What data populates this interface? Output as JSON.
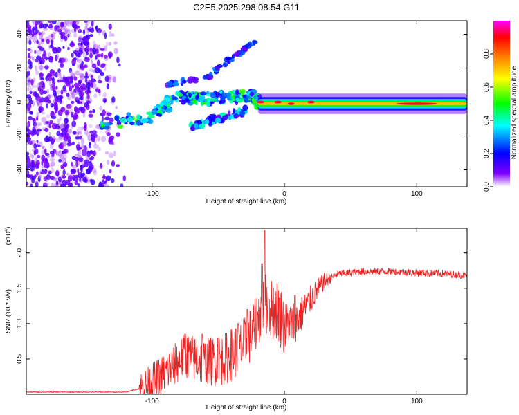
{
  "figure_title": "C2E5.2025.298.08.54.G11",
  "colors": {
    "snr_line": "#ee2222",
    "frame": "#000000"
  },
  "chart_data": [
    {
      "type": "heatmap",
      "title": "C2E5.2025.298.08.54.G11",
      "xlabel": "Height of straight line (km)",
      "ylabel": "Frequency (Hz)",
      "xlim": [
        -195,
        138
      ],
      "ylim": [
        -50,
        48
      ],
      "xticks": [
        -100,
        0,
        100
      ],
      "xtick_labels": [
        "-100",
        "0",
        "100"
      ],
      "yticks": [
        -40,
        -20,
        0,
        20,
        40
      ],
      "ytick_labels": [
        "-40",
        "-20",
        "0",
        "20",
        "40"
      ],
      "colorbar": {
        "label": "Normalized spectral amplitude",
        "range": [
          0,
          1
        ],
        "ticks": [
          0.0,
          0.2,
          0.4,
          0.6,
          0.8
        ],
        "tick_labels": [
          "0.0",
          "0.2",
          "0.4",
          "0.6",
          "0.8"
        ],
        "colormap": [
          "#ffffff",
          "#7f00ff",
          "#0000ff",
          "#00ffff",
          "#00ff00",
          "#ffff00",
          "#ff7f00",
          "#ff0000",
          "#ff00ff"
        ]
      },
      "features": [
        {
          "name": "noise",
          "x_range": [
            -195,
            -120
          ],
          "y_range": [
            -50,
            48
          ],
          "amplitude": 0.1
        },
        {
          "name": "rising_branch_main",
          "points": [
            [
              -140,
              -14
            ],
            [
              -100,
              -8
            ],
            [
              -80,
              3
            ],
            [
              -60,
              2
            ],
            [
              -40,
              3
            ],
            [
              -25,
              3
            ],
            [
              -20,
              0
            ]
          ],
          "amplitude": 0.45
        },
        {
          "name": "rising_branch_upper",
          "points": [
            [
              -90,
              10
            ],
            [
              -60,
              14
            ],
            [
              -40,
              26
            ],
            [
              -22,
              36
            ]
          ],
          "amplitude": 0.25
        },
        {
          "name": "rising_branch_lower",
          "points": [
            [
              -70,
              -14
            ],
            [
              -50,
              -10
            ],
            [
              -30,
              -5
            ]
          ],
          "amplitude": 0.35
        },
        {
          "name": "zero_frequency_band",
          "x_range": [
            -20,
            138
          ],
          "center": -1,
          "amplitude": 0.6
        },
        {
          "name": "peaks",
          "points": [
            [
              -18,
              0
            ],
            [
              -5,
              0
            ],
            [
              5,
              -1
            ],
            [
              20,
              0
            ],
            [
              100,
              -1
            ]
          ],
          "amplitude": 1.0
        }
      ]
    },
    {
      "type": "line",
      "xlabel": "Height of straight line (km)",
      "ylabel": "SNR (10 * v/v)",
      "yscale_label": "(x10",
      "yscale_exponent": "4",
      "xlim": [
        -195,
        138
      ],
      "ylim": [
        0,
        2.35
      ],
      "xticks": [
        -100,
        0,
        100
      ],
      "xtick_labels": [
        "-100",
        "0",
        "100"
      ],
      "yticks": [
        0.5,
        1.0,
        1.5,
        2.0
      ],
      "ytick_labels": [
        "0.5",
        "1.0",
        "1.5",
        "2.0"
      ],
      "series": [
        {
          "name": "SNR",
          "envelope": [
            [
              -195,
              0.03
            ],
            [
              -120,
              0.03
            ],
            [
              -105,
              0.1
            ],
            [
              -90,
              0.3
            ],
            [
              -75,
              0.55
            ],
            [
              -60,
              0.45
            ],
            [
              -45,
              0.5
            ],
            [
              -30,
              0.7
            ],
            [
              -22,
              0.95
            ],
            [
              -15,
              1.3
            ],
            [
              -10,
              1.2
            ],
            [
              -5,
              1.2
            ],
            [
              0,
              0.95
            ],
            [
              10,
              1.05
            ],
            [
              20,
              1.35
            ],
            [
              30,
              1.6
            ],
            [
              40,
              1.7
            ],
            [
              60,
              1.74
            ],
            [
              80,
              1.74
            ],
            [
              100,
              1.72
            ],
            [
              120,
              1.71
            ],
            [
              138,
              1.68
            ]
          ],
          "spikes": [
            [
              -75,
              0.85
            ],
            [
              -62,
              0.85
            ],
            [
              -50,
              0.8
            ],
            [
              -35,
              1.0
            ],
            [
              -28,
              1.2
            ],
            [
              -17,
              1.85
            ],
            [
              -15,
              2.32
            ],
            [
              -12,
              1.35
            ],
            [
              8,
              1.4
            ]
          ]
        }
      ]
    }
  ]
}
